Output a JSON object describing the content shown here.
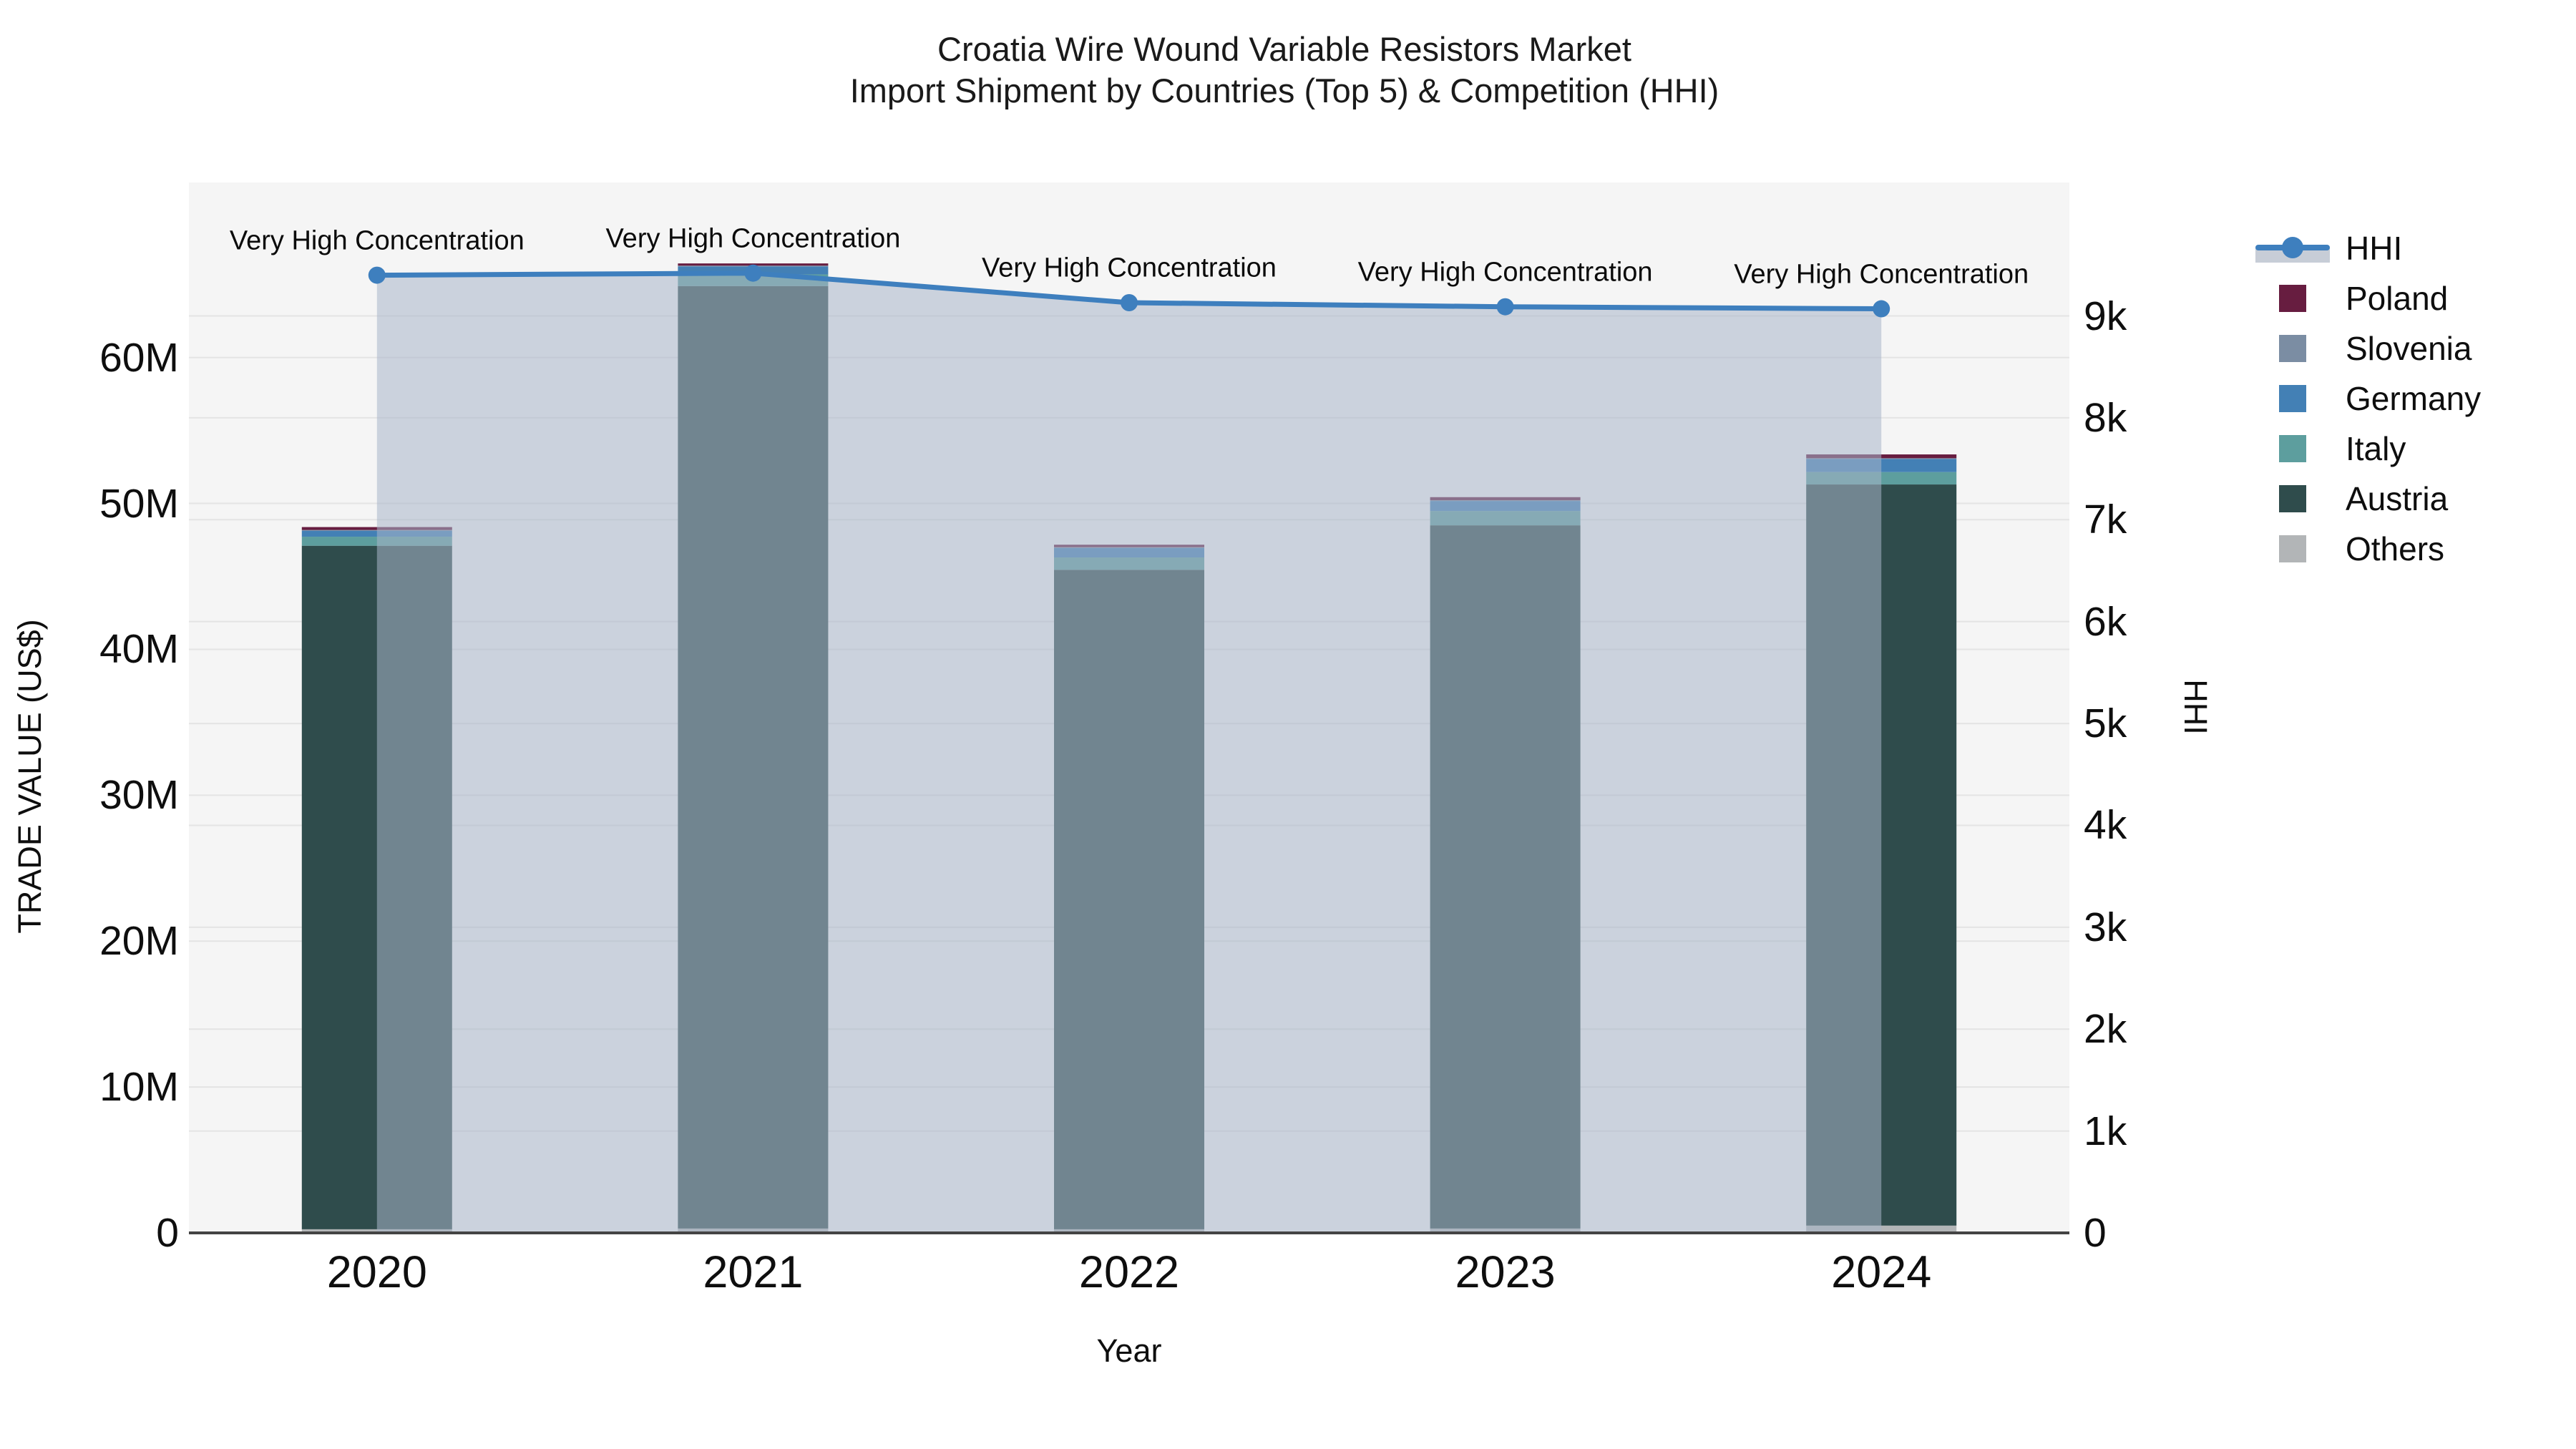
{
  "title": {
    "line1": "Croatia Wire Wound Variable Resistors Market",
    "line2": "Import Shipment by Countries (Top 5) & Competition (HHI)"
  },
  "axes": {
    "x": {
      "title": "Year"
    },
    "y_left": {
      "title": "TRADE VALUE (US$)",
      "ticks": [
        {
          "v": 0,
          "label": "0"
        },
        {
          "v": 10000000,
          "label": "10M"
        },
        {
          "v": 20000000,
          "label": "20M"
        },
        {
          "v": 30000000,
          "label": "30M"
        },
        {
          "v": 40000000,
          "label": "40M"
        },
        {
          "v": 50000000,
          "label": "50M"
        },
        {
          "v": 60000000,
          "label": "60M"
        }
      ]
    },
    "y_right": {
      "title": "HHI",
      "ticks": [
        {
          "v": 0,
          "label": "0"
        },
        {
          "v": 1000,
          "label": "1k"
        },
        {
          "v": 2000,
          "label": "2k"
        },
        {
          "v": 3000,
          "label": "3k"
        },
        {
          "v": 4000,
          "label": "4k"
        },
        {
          "v": 5000,
          "label": "5k"
        },
        {
          "v": 6000,
          "label": "6k"
        },
        {
          "v": 7000,
          "label": "7k"
        },
        {
          "v": 8000,
          "label": "8k"
        },
        {
          "v": 9000,
          "label": "9k"
        }
      ]
    }
  },
  "legend": [
    {
      "name": "HHI",
      "type": "line",
      "color": "#3e7fbe"
    },
    {
      "name": "Poland",
      "type": "swatch",
      "color": "#671d40"
    },
    {
      "name": "Slovenia",
      "type": "swatch",
      "color": "#7b8da3"
    },
    {
      "name": "Germany",
      "type": "swatch",
      "color": "#4380b5"
    },
    {
      "name": "Italy",
      "type": "swatch",
      "color": "#5d9e9e"
    },
    {
      "name": "Austria",
      "type": "swatch",
      "color": "#2f4c4c"
    },
    {
      "name": "Others",
      "type": "swatch",
      "color": "#b2b5b7"
    }
  ],
  "chart_data": {
    "type": "combo-stacked-bar-line",
    "categories": [
      "2020",
      "2021",
      "2022",
      "2023",
      "2024"
    ],
    "bar_value_unit": "US$",
    "y_left_range": [
      0,
      72000000
    ],
    "y_right_range": [
      0,
      10310
    ],
    "grid": true,
    "legend_position": "right",
    "series": [
      {
        "name": "Others",
        "values": [
          250000,
          300000,
          250000,
          300000,
          500000
        ],
        "color": "#b2b5b7"
      },
      {
        "name": "Austria",
        "values": [
          46850000,
          64600000,
          45200000,
          48200000,
          50800000
        ],
        "color": "#2f4c4c"
      },
      {
        "name": "Italy",
        "values": [
          620000,
          800000,
          850000,
          980000,
          850000
        ],
        "color": "#5d9e9e"
      },
      {
        "name": "Germany",
        "values": [
          410000,
          550000,
          650000,
          690000,
          900000
        ],
        "color": "#4380b5"
      },
      {
        "name": "Slovenia",
        "values": [
          50000,
          50000,
          50000,
          50000,
          50000
        ],
        "color": "#7b8da3"
      },
      {
        "name": "Poland",
        "values": [
          200000,
          150000,
          170000,
          210000,
          260000
        ],
        "color": "#671d40"
      }
    ],
    "line": {
      "name": "HHI",
      "axis": "right",
      "values": [
        9400,
        9420,
        9130,
        9090,
        9070
      ],
      "color": "#3e7fbe",
      "area_fill": "rgba(167,181,200,0.55)"
    },
    "annotations": [
      {
        "category": "2020",
        "text": "Very High Concentration"
      },
      {
        "category": "2021",
        "text": "Very High Concentration"
      },
      {
        "category": "2022",
        "text": "Very High Concentration"
      },
      {
        "category": "2023",
        "text": "Very High Concentration"
      },
      {
        "category": "2024",
        "text": "Very High Concentration"
      }
    ],
    "styles": {
      "plot_bg": "#f5f5f5",
      "grid_color": "#e4e4e4",
      "axis_line_color": "#444444"
    }
  }
}
